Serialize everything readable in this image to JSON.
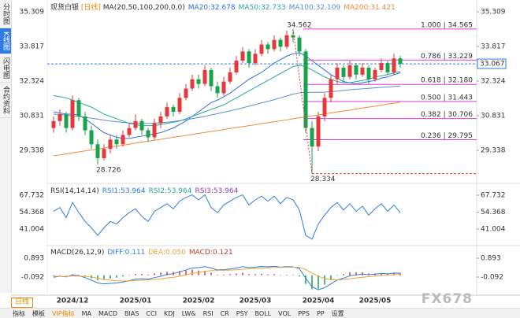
{
  "sidebar": [
    "分时图",
    "K线图",
    "闪电图",
    "合约资料"
  ],
  "toolbar": {
    "active": "日线",
    "tabs": [
      "指标",
      "模板",
      "VIP指标",
      "MA",
      "MACD",
      "BIAS",
      "CCI",
      "KDJ",
      "LW&",
      "RSI",
      "CR",
      "PSY",
      "BOLL",
      "VOL",
      "PPS",
      "PP",
      "设置"
    ]
  },
  "watermark": "FX678",
  "chart_data": {
    "type": "candlestick",
    "title": "现货白银",
    "period": "[日线]",
    "indicator": "MA(20,50,100,200,0,0)",
    "up_color": "#e5383b",
    "down_color": "#17a34a",
    "ylim": [
      28.014,
      35.648
    ],
    "yticks": [
      29.338,
      30.831,
      32.324,
      33.817,
      35.309
    ],
    "categories": [
      null,
      null,
      null,
      "2024/12",
      null,
      null,
      null,
      null,
      null,
      null,
      null,
      null,
      null,
      "2025/01",
      null,
      null,
      null,
      null,
      null,
      null,
      null,
      null,
      null,
      "2025/02",
      null,
      null,
      null,
      null,
      null,
      null,
      null,
      null,
      "2025/03",
      null,
      null,
      null,
      null,
      null,
      null,
      null,
      null,
      null,
      "2025/04",
      null,
      null,
      null,
      null,
      null,
      null,
      null,
      null,
      "2025/05",
      null,
      null,
      null,
      null
    ],
    "ohlc": [
      [
        30.3,
        30.8,
        30.1,
        30.6
      ],
      [
        30.6,
        31.1,
        30.4,
        30.9
      ],
      [
        30.9,
        31.0,
        30.1,
        30.3
      ],
      [
        30.3,
        31.7,
        30.2,
        31.5
      ],
      [
        31.5,
        31.6,
        30.6,
        30.8
      ],
      [
        30.8,
        31.0,
        30.0,
        30.2
      ],
      [
        30.2,
        30.4,
        29.4,
        29.6
      ],
      [
        29.6,
        29.8,
        28.726,
        29.0
      ],
      [
        29.0,
        29.6,
        28.9,
        29.4
      ],
      [
        29.4,
        30.0,
        29.2,
        29.8
      ],
      [
        29.8,
        30.0,
        29.4,
        29.6
      ],
      [
        29.6,
        30.2,
        29.5,
        30.0
      ],
      [
        30.0,
        30.5,
        29.9,
        30.3
      ],
      [
        30.3,
        30.9,
        30.2,
        30.6
      ],
      [
        30.6,
        30.7,
        30.0,
        30.2
      ],
      [
        30.2,
        30.3,
        29.7,
        29.9
      ],
      [
        29.9,
        30.7,
        29.8,
        30.5
      ],
      [
        30.5,
        31.0,
        30.3,
        30.8
      ],
      [
        30.8,
        31.4,
        30.7,
        31.2
      ],
      [
        31.2,
        31.3,
        30.8,
        31.0
      ],
      [
        31.0,
        31.8,
        30.9,
        31.6
      ],
      [
        31.6,
        32.2,
        31.5,
        32.0
      ],
      [
        32.0,
        32.6,
        31.9,
        32.4
      ],
      [
        32.4,
        32.6,
        32.0,
        32.2
      ],
      [
        32.2,
        33.0,
        32.1,
        32.8
      ],
      [
        32.8,
        32.9,
        31.9,
        32.1
      ],
      [
        32.1,
        32.3,
        31.6,
        31.8
      ],
      [
        31.8,
        32.5,
        31.7,
        32.3
      ],
      [
        32.3,
        32.9,
        32.2,
        32.7
      ],
      [
        32.7,
        33.4,
        32.6,
        33.2
      ],
      [
        33.2,
        33.8,
        33.1,
        33.6
      ],
      [
        33.6,
        33.7,
        32.9,
        33.1
      ],
      [
        33.1,
        33.7,
        33.0,
        33.5
      ],
      [
        33.5,
        34.1,
        33.4,
        33.9
      ],
      [
        33.9,
        34.0,
        33.5,
        33.7
      ],
      [
        33.7,
        34.3,
        33.6,
        34.1
      ],
      [
        34.1,
        34.2,
        33.6,
        33.8
      ],
      [
        33.8,
        34.5,
        33.7,
        34.3
      ],
      [
        34.3,
        34.562,
        34.0,
        34.2
      ],
      [
        34.2,
        34.3,
        33.4,
        33.6
      ],
      [
        33.6,
        33.7,
        30.1,
        30.3
      ],
      [
        30.3,
        30.6,
        28.334,
        29.5
      ],
      [
        29.5,
        31.0,
        29.3,
        30.8
      ],
      [
        30.8,
        31.8,
        30.6,
        31.6
      ],
      [
        31.6,
        32.6,
        31.4,
        32.4
      ],
      [
        32.4,
        33.1,
        32.2,
        32.9
      ],
      [
        32.9,
        33.0,
        32.3,
        32.5
      ],
      [
        32.5,
        33.2,
        32.4,
        33.0
      ],
      [
        33.0,
        33.1,
        32.4,
        32.6
      ],
      [
        32.6,
        33.1,
        32.5,
        32.9
      ],
      [
        32.9,
        33.0,
        32.2,
        32.4
      ],
      [
        32.4,
        32.9,
        32.3,
        32.8
      ],
      [
        32.8,
        33.3,
        32.7,
        33.1
      ],
      [
        33.1,
        33.2,
        32.6,
        32.7
      ],
      [
        32.7,
        33.5,
        32.6,
        33.3
      ],
      [
        33.3,
        33.4,
        32.9,
        33.067
      ]
    ],
    "ma": [
      {
        "name": "MA20:32.678",
        "color": "#2f6fe0",
        "values": [
          31.0,
          30.95,
          30.9,
          30.9,
          30.85,
          30.7,
          30.5,
          30.3,
          30.1,
          30.0,
          29.9,
          29.85,
          29.85,
          29.9,
          29.95,
          30.0,
          30.05,
          30.1,
          30.2,
          30.3,
          30.45,
          30.6,
          30.8,
          31.0,
          31.2,
          31.4,
          31.5,
          31.65,
          31.8,
          32.0,
          32.2,
          32.4,
          32.55,
          32.7,
          32.9,
          33.1,
          33.25,
          33.4,
          33.5,
          33.55,
          33.4,
          33.2,
          33.0,
          32.8,
          32.6,
          32.45,
          32.3,
          32.25,
          32.2,
          32.25,
          32.3,
          32.35,
          32.45,
          32.5,
          32.6,
          32.678
        ]
      },
      {
        "name": "MA50:32.733",
        "color": "#27a89a",
        "values": [
          31.7,
          31.65,
          31.6,
          31.5,
          31.4,
          31.3,
          31.2,
          31.05,
          30.9,
          30.8,
          30.7,
          30.6,
          30.5,
          30.45,
          30.4,
          30.4,
          30.4,
          30.45,
          30.5,
          30.55,
          30.6,
          30.7,
          30.8,
          30.9,
          31.0,
          31.1,
          31.2,
          31.3,
          31.45,
          31.6,
          31.75,
          31.9,
          32.05,
          32.2,
          32.35,
          32.5,
          32.65,
          32.8,
          32.95,
          33.0,
          32.95,
          32.8,
          32.65,
          32.5,
          32.4,
          32.3,
          32.25,
          32.25,
          32.3,
          32.35,
          32.4,
          32.5,
          32.55,
          32.6,
          32.68,
          32.733
        ]
      },
      {
        "name": "MA100:32.109",
        "color": "#5b8fd9",
        "values": [
          30.9,
          30.88,
          30.85,
          30.82,
          30.8,
          30.76,
          30.72,
          30.68,
          30.64,
          30.6,
          30.57,
          30.54,
          30.52,
          30.5,
          30.5,
          30.5,
          30.51,
          30.53,
          30.55,
          30.58,
          30.62,
          30.66,
          30.7,
          30.75,
          30.8,
          30.86,
          30.92,
          30.98,
          31.04,
          31.1,
          31.17,
          31.24,
          31.31,
          31.38,
          31.45,
          31.52,
          31.6,
          31.68,
          31.76,
          31.82,
          31.84,
          31.84,
          31.84,
          31.85,
          31.87,
          31.89,
          31.92,
          31.95,
          31.97,
          31.99,
          32.01,
          32.03,
          32.05,
          32.07,
          32.09,
          32.109
        ]
      },
      {
        "name": "MA200:31.421",
        "color": "#f08a3a",
        "values": [
          29.1,
          29.14,
          29.18,
          29.23,
          29.27,
          29.31,
          29.35,
          29.39,
          29.44,
          29.48,
          29.52,
          29.56,
          29.6,
          29.65,
          29.69,
          29.73,
          29.77,
          29.81,
          29.86,
          29.9,
          29.94,
          29.98,
          30.02,
          30.07,
          30.11,
          30.15,
          30.19,
          30.23,
          30.28,
          30.32,
          30.36,
          30.4,
          30.44,
          30.49,
          30.53,
          30.57,
          30.61,
          30.65,
          30.7,
          30.74,
          30.78,
          30.82,
          30.86,
          30.91,
          30.95,
          30.99,
          31.03,
          31.07,
          31.12,
          31.16,
          31.2,
          31.24,
          31.28,
          31.33,
          31.37,
          31.421
        ]
      }
    ],
    "last": {
      "value": 33.067,
      "color": "#2f7de1"
    },
    "high_label": 34.562,
    "low_labels": [
      28.726,
      28.334
    ],
    "fib": {
      "color": "#e23ad2",
      "levels": [
        {
          "label": "1.000 | 34.565",
          "value": 34.565
        },
        {
          "label": "0.786 | 33.229",
          "value": 33.229
        },
        {
          "label": "0.618 | 32.180",
          "value": 32.18
        },
        {
          "label": "0.500 | 31.443",
          "value": 31.443
        },
        {
          "label": "0.382 | 30.706",
          "value": 30.706
        },
        {
          "label": "0.236 | 29.795",
          "value": 29.795
        }
      ]
    },
    "rsi": {
      "title": "RSI(14,14,14)",
      "names": [
        "RSI1:53.964",
        "RSI2:53.964",
        "RSI3:53.964"
      ],
      "colors": [
        "#2f7de1",
        "#27a89a",
        "#8e44ad"
      ],
      "ylim": [
        29.19,
        74.57
      ],
      "yticks": [
        41.004,
        54.368,
        67.732
      ],
      "values": [
        55,
        58,
        50,
        62,
        54,
        47,
        42,
        36,
        42,
        47,
        45,
        50,
        54,
        57,
        51,
        47,
        55,
        58,
        61,
        57,
        63,
        66,
        68,
        64,
        68,
        58,
        54,
        60,
        63,
        66,
        68,
        60,
        64,
        67,
        63,
        67,
        61,
        66,
        64,
        56,
        36,
        33,
        45,
        52,
        58,
        62,
        56,
        61,
        55,
        59,
        52,
        57,
        61,
        55,
        60,
        53.964
      ]
    },
    "macd": {
      "title": "MACD(26,12,9)",
      "ylim": [
        -0.913,
        1.427
      ],
      "yticks": [
        -0.092,
        0.893
      ],
      "diff": {
        "name": "DIFF:0.111",
        "color": "#2f7de1",
        "values": [
          -0.1,
          -0.05,
          -0.08,
          0.02,
          -0.02,
          -0.12,
          -0.25,
          -0.4,
          -0.45,
          -0.42,
          -0.4,
          -0.35,
          -0.28,
          -0.2,
          -0.18,
          -0.2,
          -0.12,
          -0.05,
          0.05,
          0.08,
          0.18,
          0.28,
          0.38,
          0.4,
          0.45,
          0.38,
          0.28,
          0.3,
          0.33,
          0.38,
          0.45,
          0.4,
          0.42,
          0.46,
          0.44,
          0.47,
          0.42,
          0.45,
          0.44,
          0.35,
          -0.15,
          -0.6,
          -0.75,
          -0.65,
          -0.45,
          -0.25,
          -0.15,
          -0.02,
          0.02,
          0.06,
          0.03,
          0.06,
          0.1,
          0.08,
          0.12,
          0.111
        ]
      },
      "dea": {
        "name": "DEA:0.050",
        "color": "#e8a33d",
        "values": [
          -0.05,
          -0.05,
          -0.06,
          -0.04,
          -0.04,
          -0.05,
          -0.09,
          -0.15,
          -0.21,
          -0.25,
          -0.28,
          -0.29,
          -0.29,
          -0.27,
          -0.25,
          -0.24,
          -0.22,
          -0.19,
          -0.14,
          -0.1,
          -0.05,
          0.02,
          0.09,
          0.15,
          0.21,
          0.24,
          0.25,
          0.26,
          0.27,
          0.29,
          0.32,
          0.34,
          0.36,
          0.38,
          0.39,
          0.41,
          0.41,
          0.42,
          0.42,
          0.41,
          0.3,
          0.12,
          -0.05,
          -0.17,
          -0.23,
          -0.24,
          -0.22,
          -0.18,
          -0.14,
          -0.1,
          -0.07,
          -0.04,
          -0.01,
          0.01,
          0.03,
          0.05
        ]
      },
      "hist": {
        "name": "MACD:0.121",
        "color": "#c0392b",
        "values": [
          -0.05,
          0,
          -0.02,
          0.06,
          0.02,
          -0.07,
          -0.16,
          -0.25,
          -0.24,
          -0.17,
          -0.12,
          -0.06,
          0.01,
          0.07,
          0.07,
          0.04,
          0.1,
          0.14,
          0.19,
          0.18,
          0.23,
          0.26,
          0.29,
          0.25,
          0.24,
          0.14,
          0.03,
          0.04,
          0.06,
          0.09,
          0.13,
          0.06,
          0.06,
          0.08,
          0.05,
          0.06,
          0.01,
          0.03,
          0.02,
          -0.06,
          -0.45,
          -0.72,
          -0.7,
          -0.48,
          -0.22,
          -0.01,
          0.07,
          0.16,
          0.16,
          0.16,
          0.1,
          0.1,
          0.11,
          0.07,
          0.09,
          0.121
        ]
      }
    }
  }
}
